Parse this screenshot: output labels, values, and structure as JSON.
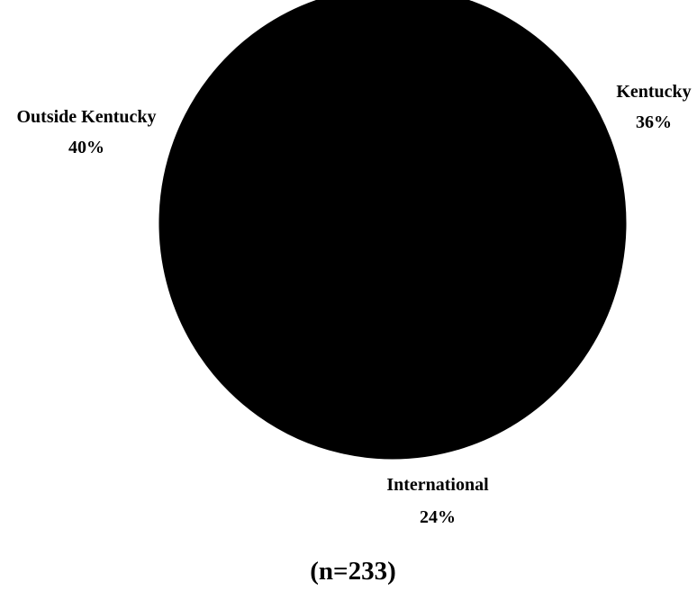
{
  "chart_data": {
    "type": "pie",
    "slices": [
      {
        "label": "Kentucky",
        "value": 36,
        "value_label": "36%",
        "color": "#000000"
      },
      {
        "label": "International",
        "value": 24,
        "value_label": "24%",
        "color": "#000000"
      },
      {
        "label": "Outside Kentucky",
        "value": 40,
        "value_label": "40%",
        "color": "#000000"
      }
    ],
    "sample_size_label": "(n=233)",
    "background": "#ffffff",
    "text_color": "#000000"
  }
}
